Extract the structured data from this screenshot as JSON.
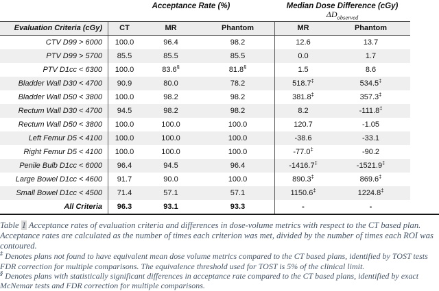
{
  "table": {
    "span_headers": {
      "acceptance": "Acceptance Rate (%)",
      "median": "Median Dose Difference (cGy)",
      "delta": "ΔD",
      "delta_sub": "observed"
    },
    "columns": [
      "Evaluation Criteria (cGy)",
      "CT",
      "MR",
      "Phantom",
      "MR",
      "Phantom"
    ],
    "rows": [
      {
        "criteria": "CTV D99 > 6000",
        "cells": [
          {
            "v": "100.0"
          },
          {
            "v": "96.4"
          },
          {
            "v": "98.2"
          },
          {
            "v": "12.6"
          },
          {
            "v": "13.7"
          }
        ]
      },
      {
        "criteria": "PTV D99 > 5700",
        "cells": [
          {
            "v": "85.5"
          },
          {
            "v": "85.5"
          },
          {
            "v": "85.5"
          },
          {
            "v": "0.0"
          },
          {
            "v": "1.7"
          }
        ]
      },
      {
        "criteria": "PTV D1cc < 6300",
        "cells": [
          {
            "v": "100.0"
          },
          {
            "v": "83.6",
            "s": "§"
          },
          {
            "v": "81.8",
            "s": "§"
          },
          {
            "v": "1.5"
          },
          {
            "v": "8.6"
          }
        ]
      },
      {
        "criteria": "Bladder Wall D30 < 4700",
        "cells": [
          {
            "v": "90.9"
          },
          {
            "v": "80.0"
          },
          {
            "v": "78.2"
          },
          {
            "v": "518.7",
            "s": "‡"
          },
          {
            "v": "534.5",
            "s": "‡"
          }
        ]
      },
      {
        "criteria": "Bladder Wall D50 < 3800",
        "cells": [
          {
            "v": "100.0"
          },
          {
            "v": "98.2"
          },
          {
            "v": "98.2"
          },
          {
            "v": "381.8",
            "s": "‡"
          },
          {
            "v": "357.3",
            "s": "‡"
          }
        ]
      },
      {
        "criteria": "Rectum Wall D30 < 4700",
        "cells": [
          {
            "v": "94.5"
          },
          {
            "v": "98.2"
          },
          {
            "v": "98.2"
          },
          {
            "v": "8.2"
          },
          {
            "v": "-111.8",
            "s": "‡"
          }
        ]
      },
      {
        "criteria": "Rectum Wall D50 < 3800",
        "cells": [
          {
            "v": "100.0"
          },
          {
            "v": "100.0"
          },
          {
            "v": "100.0"
          },
          {
            "v": "120.7"
          },
          {
            "v": "-1.05"
          }
        ]
      },
      {
        "criteria": "Left Femur D5 < 4100",
        "cells": [
          {
            "v": "100.0"
          },
          {
            "v": "100.0"
          },
          {
            "v": "100.0"
          },
          {
            "v": "-38.6"
          },
          {
            "v": "-33.1"
          }
        ]
      },
      {
        "criteria": "Right Femur D5 < 4100",
        "cells": [
          {
            "v": "100.0"
          },
          {
            "v": "100.0"
          },
          {
            "v": "100.0"
          },
          {
            "v": "-77.0",
            "s": "‡"
          },
          {
            "v": "-90.2"
          }
        ]
      },
      {
        "criteria": "Penile Bulb D1cc < 6000",
        "cells": [
          {
            "v": "96.4"
          },
          {
            "v": "94.5"
          },
          {
            "v": "96.4"
          },
          {
            "v": "-1416.7",
            "s": "‡"
          },
          {
            "v": "-1521.9",
            "s": "‡"
          }
        ]
      },
      {
        "criteria": "Large Bowel D1cc < 4600",
        "cells": [
          {
            "v": "91.7"
          },
          {
            "v": "90.0"
          },
          {
            "v": "100.0"
          },
          {
            "v": "890.3",
            "s": "‡"
          },
          {
            "v": "869.6",
            "s": "‡"
          }
        ]
      },
      {
        "criteria": "Small Bowel D1cc < 4500",
        "cells": [
          {
            "v": "71.4"
          },
          {
            "v": "57.1"
          },
          {
            "v": "57.1"
          },
          {
            "v": "1150.6",
            "s": "‡"
          },
          {
            "v": "1224.8",
            "s": "‡"
          }
        ]
      },
      {
        "criteria": "All Criteria",
        "bold": true,
        "cells": [
          {
            "v": "96.3"
          },
          {
            "v": "93.1"
          },
          {
            "v": "93.3"
          },
          {
            "v": "-"
          },
          {
            "v": "-"
          }
        ]
      }
    ]
  },
  "caption": {
    "prefix": "Table ",
    "number": "1",
    "body": " Acceptance rates of evaluation criteria and differences in dose-volume metrics with respect to the CT based plan. Acceptance rates are calculated as the number of times each criterion was met, divided by the number of times each ROI was contoured."
  },
  "footnotes": [
    {
      "marker": "‡",
      "text": " Denotes plans not found to have equivalent mean dose volume metrics compared to the CT based plans, identified by TOST tests FDR correction for multiple comparisons. The equivalence threshold used for TOST is 5% of the clinical limit."
    },
    {
      "marker": "§",
      "text": " Denotes plans with statistically significant differences in acceptance rate compared to the CT based plans, identified by exact McNemar tests and FDR correction for multiple comparisons."
    }
  ],
  "colors": {
    "stripe": "#efefef",
    "header_bg": "#ececec",
    "caption_color": "#455569"
  },
  "chart_data": {
    "type": "table",
    "title": "Table 1 Acceptance rates and median dose differences vs CT based plan",
    "columns": [
      "Evaluation Criteria (cGy)",
      "Acceptance Rate (%) CT",
      "Acceptance Rate (%) MR",
      "Acceptance Rate (%) Phantom",
      "Median Dose Difference (cGy) MR",
      "Median Dose Difference (cGy) Phantom"
    ],
    "rows": [
      [
        "CTV D99 > 6000",
        100.0,
        96.4,
        98.2,
        12.6,
        13.7
      ],
      [
        "PTV D99 > 5700",
        85.5,
        85.5,
        85.5,
        0.0,
        1.7
      ],
      [
        "PTV D1cc < 6300",
        100.0,
        83.6,
        81.8,
        1.5,
        8.6
      ],
      [
        "Bladder Wall D30 < 4700",
        90.9,
        80.0,
        78.2,
        518.7,
        534.5
      ],
      [
        "Bladder Wall D50 < 3800",
        100.0,
        98.2,
        98.2,
        381.8,
        357.3
      ],
      [
        "Rectum Wall D30 < 4700",
        94.5,
        98.2,
        98.2,
        8.2,
        -111.8
      ],
      [
        "Rectum Wall D50 < 3800",
        100.0,
        100.0,
        100.0,
        120.7,
        -1.05
      ],
      [
        "Left Femur D5 < 4100",
        100.0,
        100.0,
        100.0,
        -38.6,
        -33.1
      ],
      [
        "Right Femur D5 < 4100",
        100.0,
        100.0,
        100.0,
        -77.0,
        -90.2
      ],
      [
        "Penile Bulb D1cc < 6000",
        96.4,
        94.5,
        96.4,
        -1416.7,
        -1521.9
      ],
      [
        "Large Bowel D1cc < 4600",
        91.7,
        90.0,
        100.0,
        890.3,
        869.6
      ],
      [
        "Small Bowel D1cc < 4500",
        71.4,
        57.1,
        57.1,
        1150.6,
        1224.8
      ],
      [
        "All Criteria",
        96.3,
        93.1,
        93.3,
        null,
        null
      ]
    ]
  }
}
